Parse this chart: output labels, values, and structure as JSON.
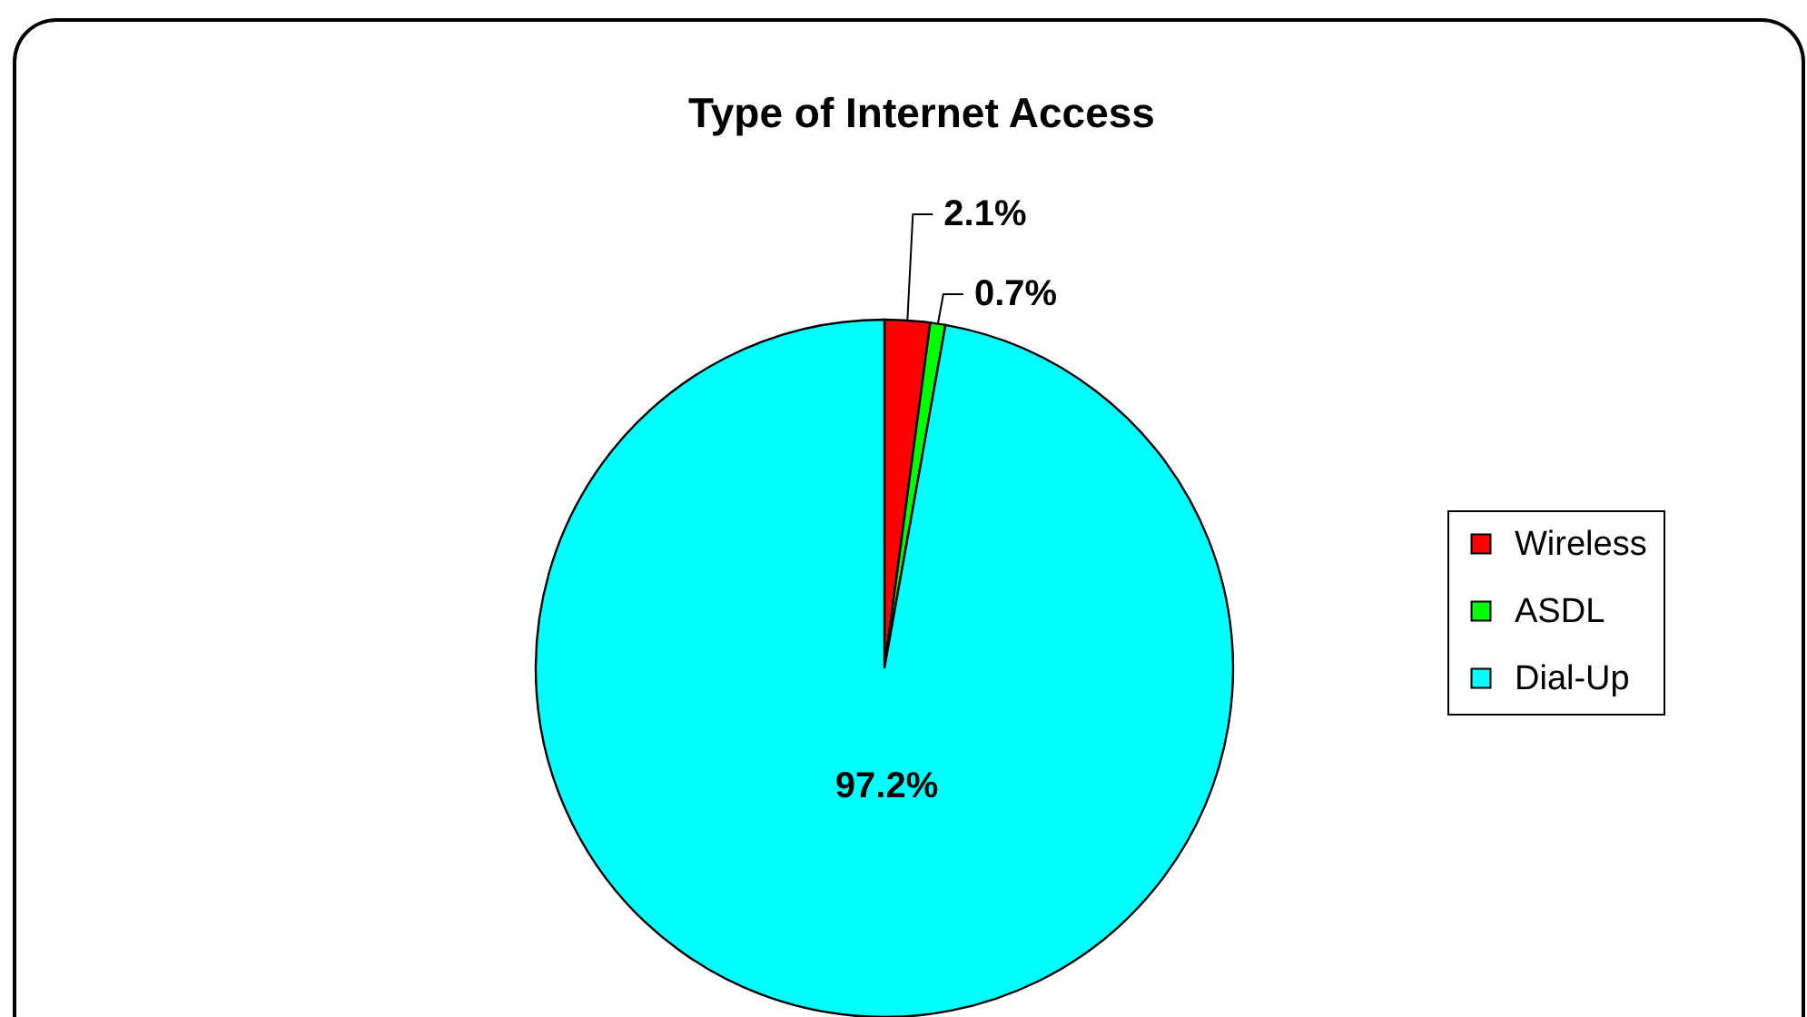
{
  "chart_data": {
    "type": "pie",
    "title": "Type of Internet Access",
    "categories": [
      "Wireless",
      "ASDL",
      "Dial-Up"
    ],
    "values": [
      2.1,
      0.7,
      97.2
    ],
    "colors": [
      "#ff0000",
      "#00ff00",
      "#00ffff"
    ],
    "value_labels": [
      "2.1%",
      "0.7%",
      "97.2%"
    ],
    "legend": "right"
  }
}
